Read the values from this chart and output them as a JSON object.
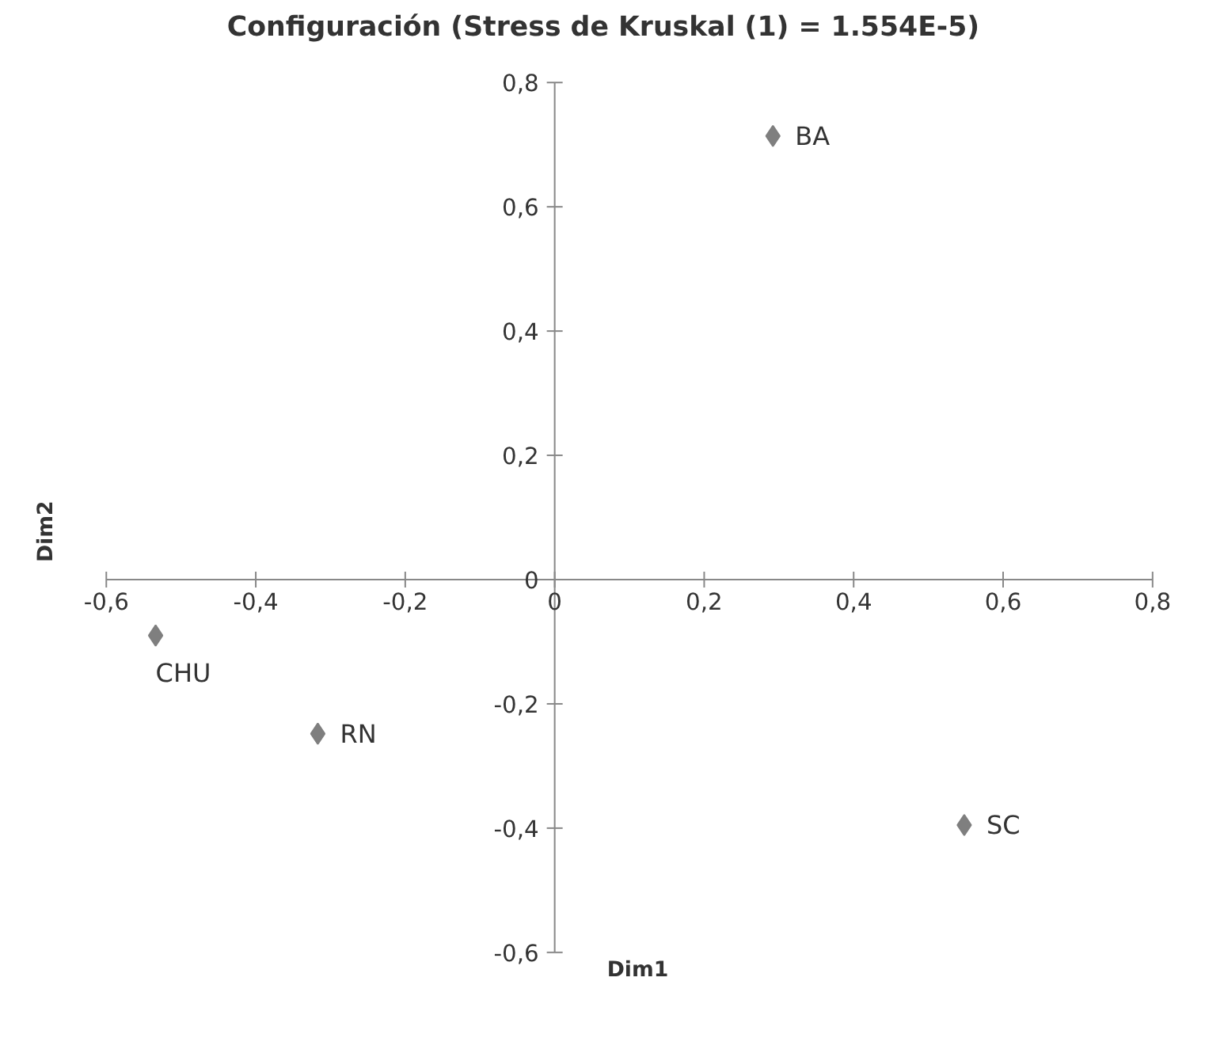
{
  "chart_data": {
    "type": "scatter",
    "title": "Configuración (Stress de Kruskal (1) = 1.554E-5)",
    "xlabel": "Dim1",
    "ylabel": "Dim2",
    "x": [
      0.292,
      0.548,
      -0.317,
      -0.534
    ],
    "values": [
      0.714,
      -0.395,
      -0.248,
      -0.09
    ],
    "color": "#7f7f7f",
    "marker": "diamond",
    "grid": false,
    "xlim": [
      -0.6,
      0.8
    ],
    "ylim": [
      -0.6,
      0.8
    ],
    "xticks": [
      {
        "value": -0.6,
        "label": "-0,6"
      },
      {
        "value": -0.4,
        "label": "-0,4"
      },
      {
        "value": -0.2,
        "label": "-0,2"
      },
      {
        "value": 0,
        "label": "0"
      },
      {
        "value": 0.2,
        "label": "0,2"
      },
      {
        "value": 0.4,
        "label": "0,4"
      },
      {
        "value": 0.6,
        "label": "0,6"
      },
      {
        "value": 0.8,
        "label": "0,8"
      }
    ],
    "yticks": [
      {
        "value": -0.6,
        "label": "-0,6"
      },
      {
        "value": -0.4,
        "label": "-0,4"
      },
      {
        "value": -0.2,
        "label": "-0,2"
      },
      {
        "value": 0,
        "label": "0"
      },
      {
        "value": 0.2,
        "label": "0,2"
      },
      {
        "value": 0.4,
        "label": "0,4"
      },
      {
        "value": 0.6,
        "label": "0,6"
      },
      {
        "value": 0.8,
        "label": "0,8"
      }
    ],
    "annotations": [
      {
        "text": "BA",
        "x": 0.292,
        "y": 0.714
      },
      {
        "text": "SC",
        "x": 0.548,
        "y": -0.395
      },
      {
        "text": "RN",
        "x": -0.317,
        "y": -0.248
      },
      {
        "text": "CHU",
        "x": -0.534,
        "y": -0.09
      }
    ]
  }
}
